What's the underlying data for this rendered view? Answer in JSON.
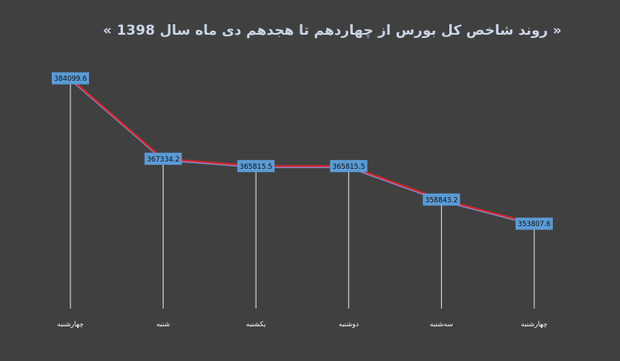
{
  "chart_data": {
    "type": "line",
    "title": "« روند شاخص کل بورس از چهاردهم تا هجدهم دی ماه سال 1398 »",
    "categories": [
      "چهارشنبه",
      "شنبه",
      "یکشنبه",
      "دوشنبه",
      "سه‌شنبه",
      "چهارشنبه"
    ],
    "values": [
      384099.6,
      367334.2,
      365815.5,
      365815.5,
      358843.2,
      353807.6
    ],
    "data_labels": [
      "384099.6",
      "367334.2",
      "365815.5",
      "365815.5",
      "358843.2",
      "353807.6"
    ],
    "ylim": [
      340000,
      386000
    ],
    "grid": false,
    "drop_lines": true,
    "legend": "none",
    "colors": {
      "background": "#404040",
      "line": "#d9252a",
      "line_shadow": "#7f8fd0",
      "label_box": "#5b9bd5",
      "drop_line": "#e6e6e6",
      "title": "#c9d5e6",
      "category_text": "#ffffff"
    }
  }
}
